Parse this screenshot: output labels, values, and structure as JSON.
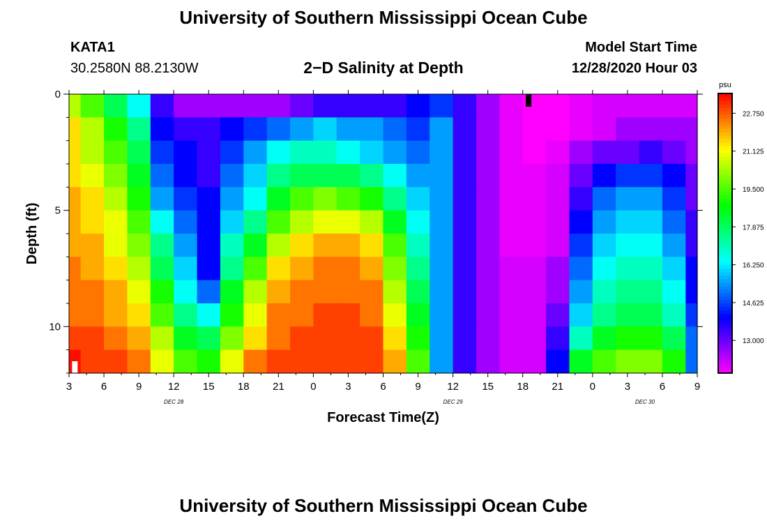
{
  "header": {
    "title": "University of Southern Mississippi Ocean Cube",
    "station": "KATA1",
    "coords": "30.2580N 88.2130W",
    "subtitle": "2−D Salinity at Depth",
    "model_label": "Model Start Time",
    "model_time": "12/28/2020 Hour 03"
  },
  "footer": {
    "title": "University of Southern Mississippi Ocean Cube"
  },
  "chart_data": {
    "type": "heatmap",
    "title": "2−D Salinity at Depth",
    "xlabel": "Forecast Time(Z)",
    "ylabel": "Depth (ft)",
    "x_tick_labels": [
      "3",
      "6",
      "9",
      "12",
      "15",
      "18",
      "21",
      "0",
      "3",
      "6",
      "9",
      "12",
      "15",
      "18",
      "21",
      "0",
      "3",
      "6",
      "9"
    ],
    "x_hours": [
      0,
      3,
      6,
      9,
      12,
      15,
      18,
      21,
      24,
      27,
      30,
      33,
      36,
      39,
      42,
      45,
      48,
      51,
      54
    ],
    "date_labels": [
      {
        "label": "DEC 28",
        "hour": 9
      },
      {
        "label": "DEC 29",
        "hour": 33
      },
      {
        "label": "DEC 30",
        "hour": 49.5
      }
    ],
    "y_ticks": [
      0,
      5,
      10
    ],
    "ylim": [
      0,
      12
    ],
    "colorbar": {
      "unit": "psu",
      "tick_labels": [
        "22.750",
        "21.125",
        "19.500",
        "17.875",
        "16.250",
        "14.625",
        "13.000"
      ],
      "ticks": [
        22.75,
        21.125,
        19.5,
        17.875,
        16.25,
        14.625,
        13.0
      ],
      "range": [
        11.6,
        23.6
      ]
    },
    "depth_levels_ft": [
      0.5,
      1.5,
      2.5,
      3.5,
      4.5,
      5.5,
      6.5,
      7.5,
      8.5,
      9.5,
      10.5,
      11.5
    ],
    "note": "Salinity (psu) by depth level (rows, surface to bottom) at forecast hours (cols).",
    "value_hours": [
      0,
      2,
      4,
      6,
      8,
      10,
      12,
      14,
      16,
      18,
      20,
      22,
      24,
      26,
      28,
      30,
      32,
      34,
      36,
      38,
      40,
      42,
      44,
      46,
      48,
      50,
      52,
      54
    ],
    "values": [
      [
        20.5,
        19.5,
        18.0,
        16.5,
        13.5,
        12.5,
        12.5,
        12.5,
        12.5,
        12.5,
        13.0,
        13.5,
        13.5,
        13.5,
        13.5,
        14.0,
        14.5,
        13.5,
        12.5,
        11.8,
        11.6,
        11.6,
        11.8,
        12.0,
        12.0,
        12.0,
        12.0,
        12.0
      ],
      [
        21.5,
        20.5,
        19.0,
        17.5,
        14.0,
        13.5,
        13.5,
        14.0,
        14.5,
        15.0,
        15.5,
        16.0,
        15.5,
        15.5,
        15.0,
        14.5,
        15.5,
        13.5,
        12.5,
        11.8,
        11.6,
        11.6,
        11.8,
        12.0,
        12.5,
        12.5,
        12.5,
        12.5
      ],
      [
        21.5,
        20.5,
        19.5,
        18.0,
        14.5,
        14.0,
        13.5,
        14.5,
        15.5,
        16.5,
        17.0,
        17.0,
        16.5,
        16.0,
        15.5,
        15.0,
        15.5,
        13.5,
        12.5,
        11.8,
        11.6,
        11.8,
        12.5,
        13.0,
        13.0,
        13.5,
        13.0,
        12.5
      ],
      [
        21.5,
        21.0,
        20.0,
        18.5,
        15.0,
        14.0,
        13.5,
        15.0,
        16.0,
        17.5,
        18.0,
        18.0,
        18.0,
        17.5,
        16.5,
        15.5,
        15.5,
        13.5,
        12.5,
        11.8,
        11.8,
        12.0,
        13.0,
        14.0,
        14.5,
        14.5,
        14.0,
        13.0
      ],
      [
        22.0,
        21.5,
        20.5,
        19.0,
        15.5,
        14.5,
        14.0,
        15.5,
        16.5,
        18.5,
        19.5,
        20.0,
        19.5,
        19.0,
        17.5,
        16.0,
        15.5,
        13.5,
        12.5,
        11.8,
        11.8,
        12.0,
        13.5,
        15.0,
        15.5,
        15.5,
        14.5,
        13.0
      ],
      [
        22.0,
        21.5,
        21.0,
        19.5,
        16.5,
        15.0,
        14.0,
        16.0,
        17.5,
        19.5,
        20.5,
        21.0,
        21.0,
        20.5,
        18.5,
        16.5,
        15.5,
        13.5,
        12.5,
        11.8,
        11.8,
        12.0,
        14.0,
        15.5,
        16.0,
        16.0,
        15.0,
        13.5
      ],
      [
        22.0,
        22.0,
        21.0,
        20.0,
        17.5,
        15.5,
        14.0,
        17.0,
        18.5,
        20.5,
        21.5,
        22.0,
        22.0,
        21.5,
        19.5,
        17.0,
        15.5,
        13.5,
        12.5,
        11.8,
        11.8,
        12.0,
        14.5,
        16.0,
        16.5,
        16.5,
        15.5,
        13.5
      ],
      [
        22.5,
        22.0,
        21.5,
        20.5,
        18.0,
        16.0,
        14.0,
        17.5,
        19.5,
        21.5,
        22.0,
        22.5,
        22.5,
        22.0,
        20.0,
        17.5,
        15.5,
        13.5,
        12.5,
        12.0,
        12.0,
        12.5,
        15.0,
        16.5,
        17.0,
        17.0,
        16.0,
        14.0
      ],
      [
        22.5,
        22.5,
        22.0,
        21.0,
        19.0,
        16.5,
        15.0,
        18.5,
        20.5,
        22.0,
        22.5,
        22.5,
        22.5,
        22.5,
        20.5,
        18.0,
        15.5,
        13.5,
        12.5,
        12.0,
        12.0,
        12.5,
        15.5,
        17.0,
        17.5,
        17.5,
        16.5,
        14.0
      ],
      [
        22.5,
        22.5,
        22.0,
        21.5,
        19.5,
        17.5,
        16.5,
        19.0,
        21.0,
        22.5,
        22.5,
        23.0,
        23.0,
        22.5,
        21.0,
        18.5,
        15.5,
        13.5,
        12.5,
        12.0,
        12.0,
        13.0,
        16.0,
        17.5,
        18.0,
        18.0,
        17.0,
        14.5
      ],
      [
        23.0,
        23.0,
        22.5,
        22.0,
        20.5,
        18.5,
        18.0,
        20.0,
        21.5,
        22.5,
        23.0,
        23.0,
        23.0,
        23.0,
        21.5,
        19.0,
        15.5,
        13.5,
        12.5,
        12.0,
        12.0,
        13.5,
        17.0,
        18.5,
        19.0,
        19.0,
        18.0,
        15.0
      ],
      [
        23.5,
        23.0,
        23.0,
        22.5,
        21.0,
        19.5,
        19.0,
        21.0,
        22.5,
        23.0,
        23.0,
        23.0,
        23.0,
        23.0,
        22.0,
        19.5,
        15.5,
        13.5,
        12.5,
        12.0,
        12.0,
        14.0,
        18.5,
        19.5,
        20.0,
        20.0,
        19.0,
        15.0
      ]
    ],
    "markers": [
      {
        "kind": "current-time",
        "hour": 39.5,
        "color": "#000000"
      },
      {
        "kind": "start-marker",
        "hour": 0.5,
        "color": "#ffffff"
      }
    ]
  }
}
